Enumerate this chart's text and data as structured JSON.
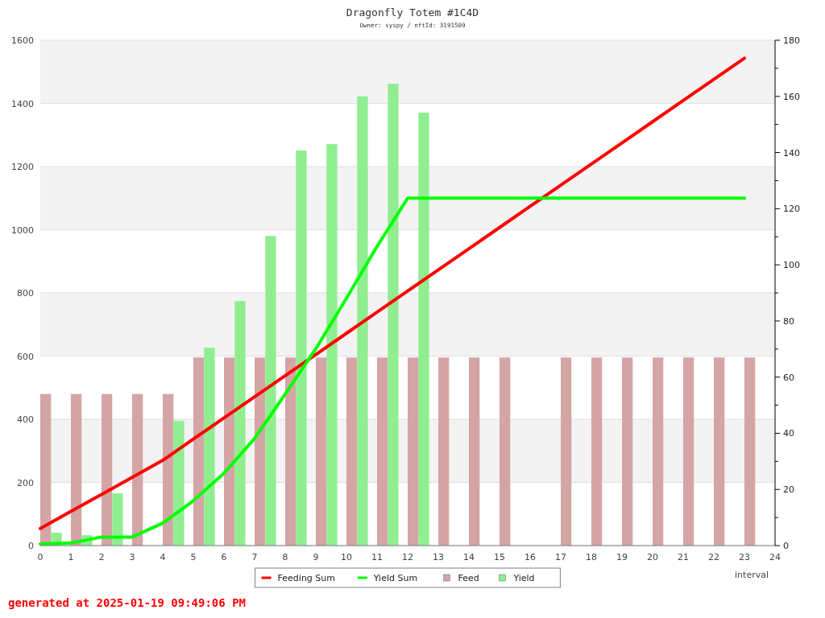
{
  "chart_data": {
    "type": "bar",
    "title": "Dragonfly Totem #1C4D",
    "subtitle": "Owner: syspy / nftId: 3191509",
    "xlabel": "interval",
    "x": [
      0,
      1,
      2,
      3,
      4,
      5,
      6,
      7,
      8,
      9,
      10,
      11,
      12,
      13,
      14,
      15,
      16,
      17,
      18,
      19,
      20,
      21,
      22,
      23
    ],
    "xlim": [
      0,
      24
    ],
    "xticks": [
      0,
      1,
      2,
      3,
      4,
      5,
      6,
      7,
      8,
      9,
      10,
      11,
      12,
      13,
      14,
      15,
      16,
      17,
      18,
      19,
      20,
      21,
      22,
      23,
      24
    ],
    "ylim": [
      0,
      1600
    ],
    "yticks": [
      0,
      200,
      400,
      600,
      800,
      1000,
      1200,
      1400,
      1600
    ],
    "y2lim": [
      0,
      180
    ],
    "y2ticks": [
      0,
      {
        "value": 10,
        "label": null
      },
      20,
      {
        "value": 30,
        "label": null
      },
      40,
      {
        "value": 50,
        "label": null
      },
      60,
      {
        "value": 70,
        "label": null
      },
      80,
      {
        "value": 90,
        "label": null
      },
      100,
      {
        "value": 110,
        "label": null
      },
      120,
      {
        "value": 130,
        "label": null
      },
      140,
      {
        "value": 150,
        "label": null
      },
      160,
      {
        "value": 170,
        "label": null
      },
      180
    ],
    "series": [
      {
        "name": "Feeding Sum",
        "type": "line",
        "color": "#ff0000",
        "values": [
          54,
          108,
          162,
          216,
          270,
          337,
          404,
          471,
          538,
          605,
          672,
          739,
          806,
          873,
          940,
          1007,
          1074,
          1141,
          1208,
          1275,
          1342,
          1409,
          1476,
          1543
        ]
      },
      {
        "name": "Yield Sum",
        "type": "line",
        "color": "#00ff00",
        "values": [
          5,
          8,
          27,
          27,
          71,
          142,
          229,
          339,
          480,
          623,
          783,
          947,
          1100,
          1100,
          1100,
          1100,
          1100,
          1100,
          1100,
          1100,
          1100,
          1100,
          1100,
          1100
        ]
      },
      {
        "name": "Feed",
        "axis": "y2",
        "color": "#d4a5a5",
        "values": [
          54,
          54,
          54,
          54,
          54,
          67,
          67,
          67,
          67,
          67,
          67,
          67,
          67,
          67,
          67,
          67,
          null,
          67,
          67,
          67,
          67,
          67,
          67,
          67
        ]
      },
      {
        "name": "Yield",
        "axis": "y2",
        "color": "#90ee90",
        "values": [
          4.6,
          3.7,
          18.6,
          null,
          44.4,
          70.5,
          87.1,
          110.3,
          140.7,
          143,
          160,
          164.5,
          154.2,
          null,
          null,
          null,
          null,
          null,
          null,
          null,
          null,
          null,
          null,
          null
        ]
      }
    ],
    "grid": "y",
    "legend": "bottom",
    "annotations": [
      "generated at 2025-01-19 09:49:06 PM"
    ]
  }
}
